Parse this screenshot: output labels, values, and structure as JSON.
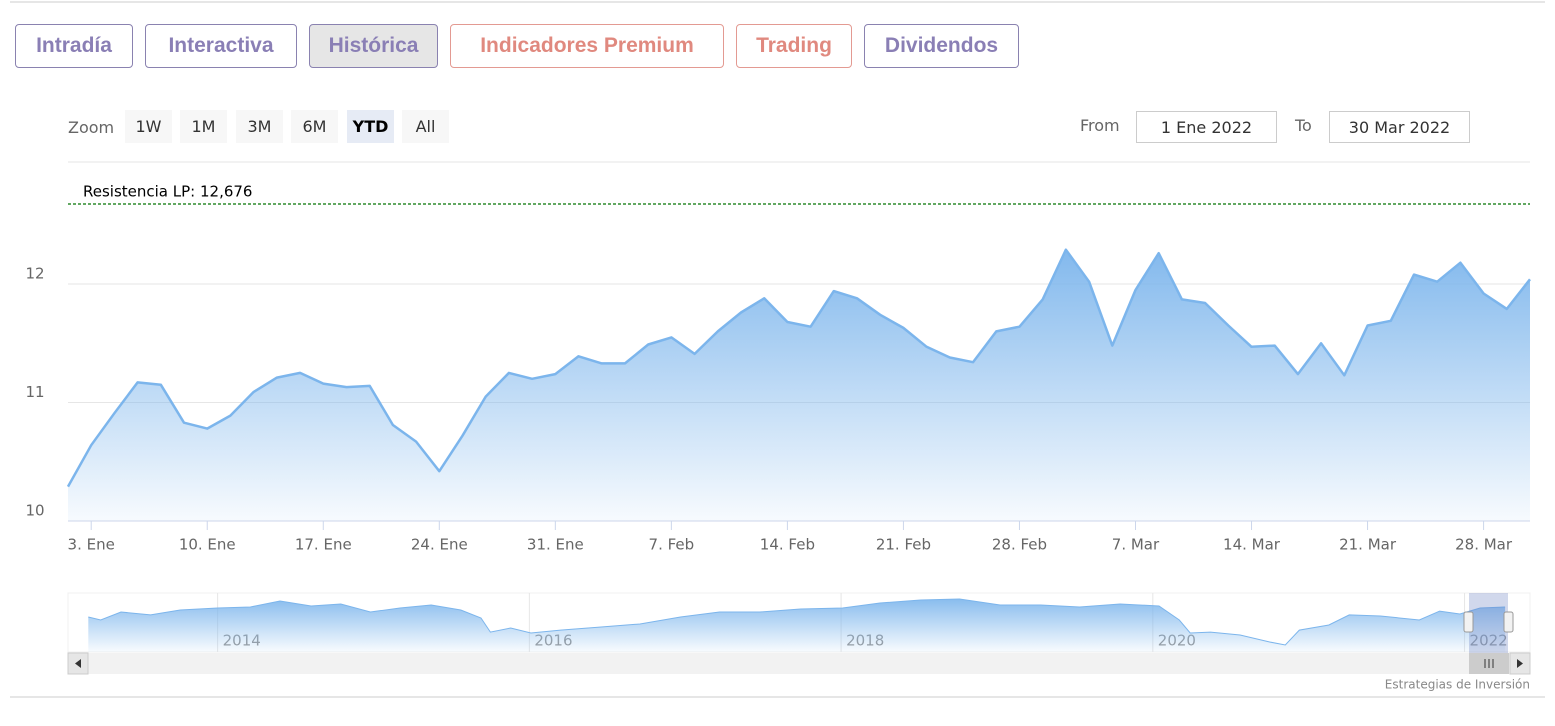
{
  "tabs": [
    "Intradía",
    "Interactiva",
    "Histórica",
    "Indicadores Premium",
    "Trading",
    "Dividendos"
  ],
  "active_tab": 2,
  "zoom": {
    "label": "Zoom",
    "buttons": [
      "1W",
      "1M",
      "3M",
      "6M",
      "YTD",
      "All"
    ],
    "active": 4
  },
  "range": {
    "from_label": "From",
    "from": "1 Ene 2022",
    "to_label": "To",
    "to": "30 Mar 2022"
  },
  "chart_data": {
    "type": "area",
    "categories": [
      null,
      "3. Ene",
      null,
      null,
      null,
      null,
      "10. Ene",
      null,
      null,
      null,
      null,
      "17. Ene",
      null,
      null,
      null,
      null,
      "24. Ene",
      null,
      null,
      null,
      null,
      "31. Ene",
      null,
      null,
      null,
      null,
      "7. Feb",
      null,
      null,
      null,
      null,
      "14. Feb",
      null,
      null,
      null,
      null,
      "21. Feb",
      null,
      null,
      null,
      null,
      "28. Feb",
      null,
      null,
      null,
      null,
      "7. Mar",
      null,
      null,
      null,
      null,
      "14. Mar",
      null,
      null,
      null,
      null,
      "21. Mar",
      null,
      null,
      null,
      null,
      "28. Mar",
      null,
      null
    ],
    "values": [
      10.29,
      10.64,
      10.91,
      11.17,
      11.15,
      10.83,
      10.78,
      10.89,
      11.09,
      11.21,
      11.25,
      11.16,
      11.13,
      11.14,
      10.81,
      10.67,
      10.42,
      10.72,
      11.05,
      11.25,
      11.2,
      11.24,
      11.39,
      11.33,
      11.33,
      11.49,
      11.55,
      11.41,
      11.6,
      11.76,
      11.88,
      11.68,
      11.64,
      11.94,
      11.88,
      11.74,
      11.63,
      11.47,
      11.38,
      11.34,
      11.6,
      11.64,
      11.87,
      12.29,
      12.02,
      11.48,
      11.95,
      12.26,
      11.87,
      11.84,
      11.65,
      11.47,
      11.48,
      11.24,
      11.5,
      11.23,
      11.65,
      11.69,
      12.08,
      12.02,
      12.18,
      11.92,
      11.79,
      12.04
    ],
    "color": "#7cb5ec",
    "ylim": [
      10,
      13.03
    ],
    "yticks": [
      10,
      11,
      12
    ],
    "grid": true,
    "plot_lines": [
      {
        "value": 12.676,
        "label": "Resistencia LP: 12,676",
        "color": "#2e8b2e"
      }
    ],
    "navigator": {
      "x": [
        2013.17,
        2013.25,
        2013.38,
        2013.57,
        2013.76,
        2014.0,
        2014.21,
        2014.4,
        2014.6,
        2014.79,
        2014.98,
        2015.17,
        2015.37,
        2015.56,
        2015.69,
        2015.75,
        2015.88,
        2016.01,
        2016.2,
        2016.46,
        2016.71,
        2016.97,
        2017.22,
        2017.48,
        2017.74,
        2018.01,
        2018.25,
        2018.51,
        2018.76,
        2019.02,
        2019.28,
        2019.53,
        2019.79,
        2020.04,
        2020.17,
        2020.24,
        2020.37,
        2020.56,
        2020.75,
        2020.85,
        2020.94,
        2021.13,
        2021.26,
        2021.46,
        2021.71,
        2021.84,
        2021.97,
        2022.1,
        2022.26
      ],
      "values": [
        10.97,
        10.71,
        11.39,
        11.14,
        11.56,
        11.73,
        11.81,
        12.32,
        11.9,
        12.07,
        11.39,
        11.73,
        11.98,
        11.56,
        10.88,
        9.69,
        10.03,
        9.61,
        9.86,
        10.12,
        10.37,
        10.97,
        11.39,
        11.39,
        11.64,
        11.73,
        12.15,
        12.41,
        12.49,
        11.98,
        11.98,
        11.81,
        12.07,
        11.9,
        10.71,
        9.61,
        9.69,
        9.44,
        8.85,
        8.59,
        9.86,
        10.29,
        11.14,
        11.05,
        10.71,
        11.47,
        11.22,
        11.73,
        11.81
      ],
      "xlim": [
        2013.04,
        2022.42
      ],
      "ylim": [
        8,
        13
      ],
      "xticks": [
        2014,
        2016,
        2018,
        2020,
        2022
      ]
    }
  },
  "credit": "Estrategias de Inversión"
}
